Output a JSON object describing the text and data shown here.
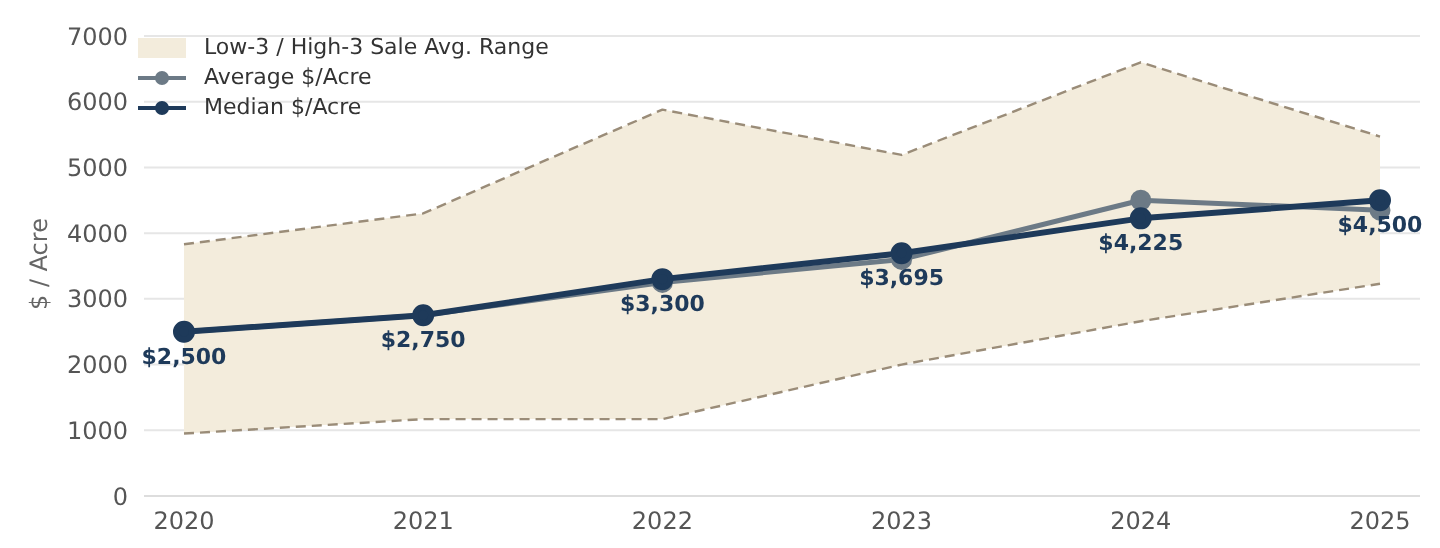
{
  "chart_data": {
    "type": "line",
    "ylabel": "$ / Acre",
    "categories": [
      "2020",
      "2021",
      "2022",
      "2023",
      "2024",
      "2025"
    ],
    "series": [
      {
        "name": "Low-3 / High-3 Sale Avg. Range",
        "type": "area",
        "color": "#f3ecdc",
        "values": [
          null,
          null,
          null,
          null,
          null,
          null
        ],
        "lower": [
          950,
          1170,
          1170,
          2000,
          2660,
          3230
        ],
        "upper": [
          3830,
          4300,
          5880,
          5190,
          6600,
          5470
        ]
      },
      {
        "color": "#9a8c78",
        "line_style": "dashed",
        "marker": "none",
        "values": [
          3830,
          4300,
          5880,
          5190,
          6600,
          5470
        ]
      },
      {
        "color": "#9a8c78",
        "line_style": "dashed",
        "marker": "none",
        "values": [
          950,
          1170,
          1170,
          2000,
          2660,
          3230
        ]
      },
      {
        "name": "Average $/Acre",
        "color": "#6c7a86",
        "values": [
          2500,
          2750,
          3250,
          3600,
          4500,
          4350
        ]
      },
      {
        "name": "Median $/Acre",
        "color": "#1e3a5a",
        "values": [
          2500,
          2750,
          3300,
          3695,
          4225,
          4500
        ],
        "value_labels": [
          "$2,500",
          "$2,750",
          "$3,300",
          "$3,695",
          "$4,225",
          "$4,500"
        ]
      }
    ],
    "ylim": [
      0,
      7000
    ],
    "yticks": [
      0,
      1000,
      2000,
      3000,
      4000,
      5000,
      6000,
      7000
    ],
    "grid": "y",
    "legend": "top left",
    "marker": "circle"
  }
}
